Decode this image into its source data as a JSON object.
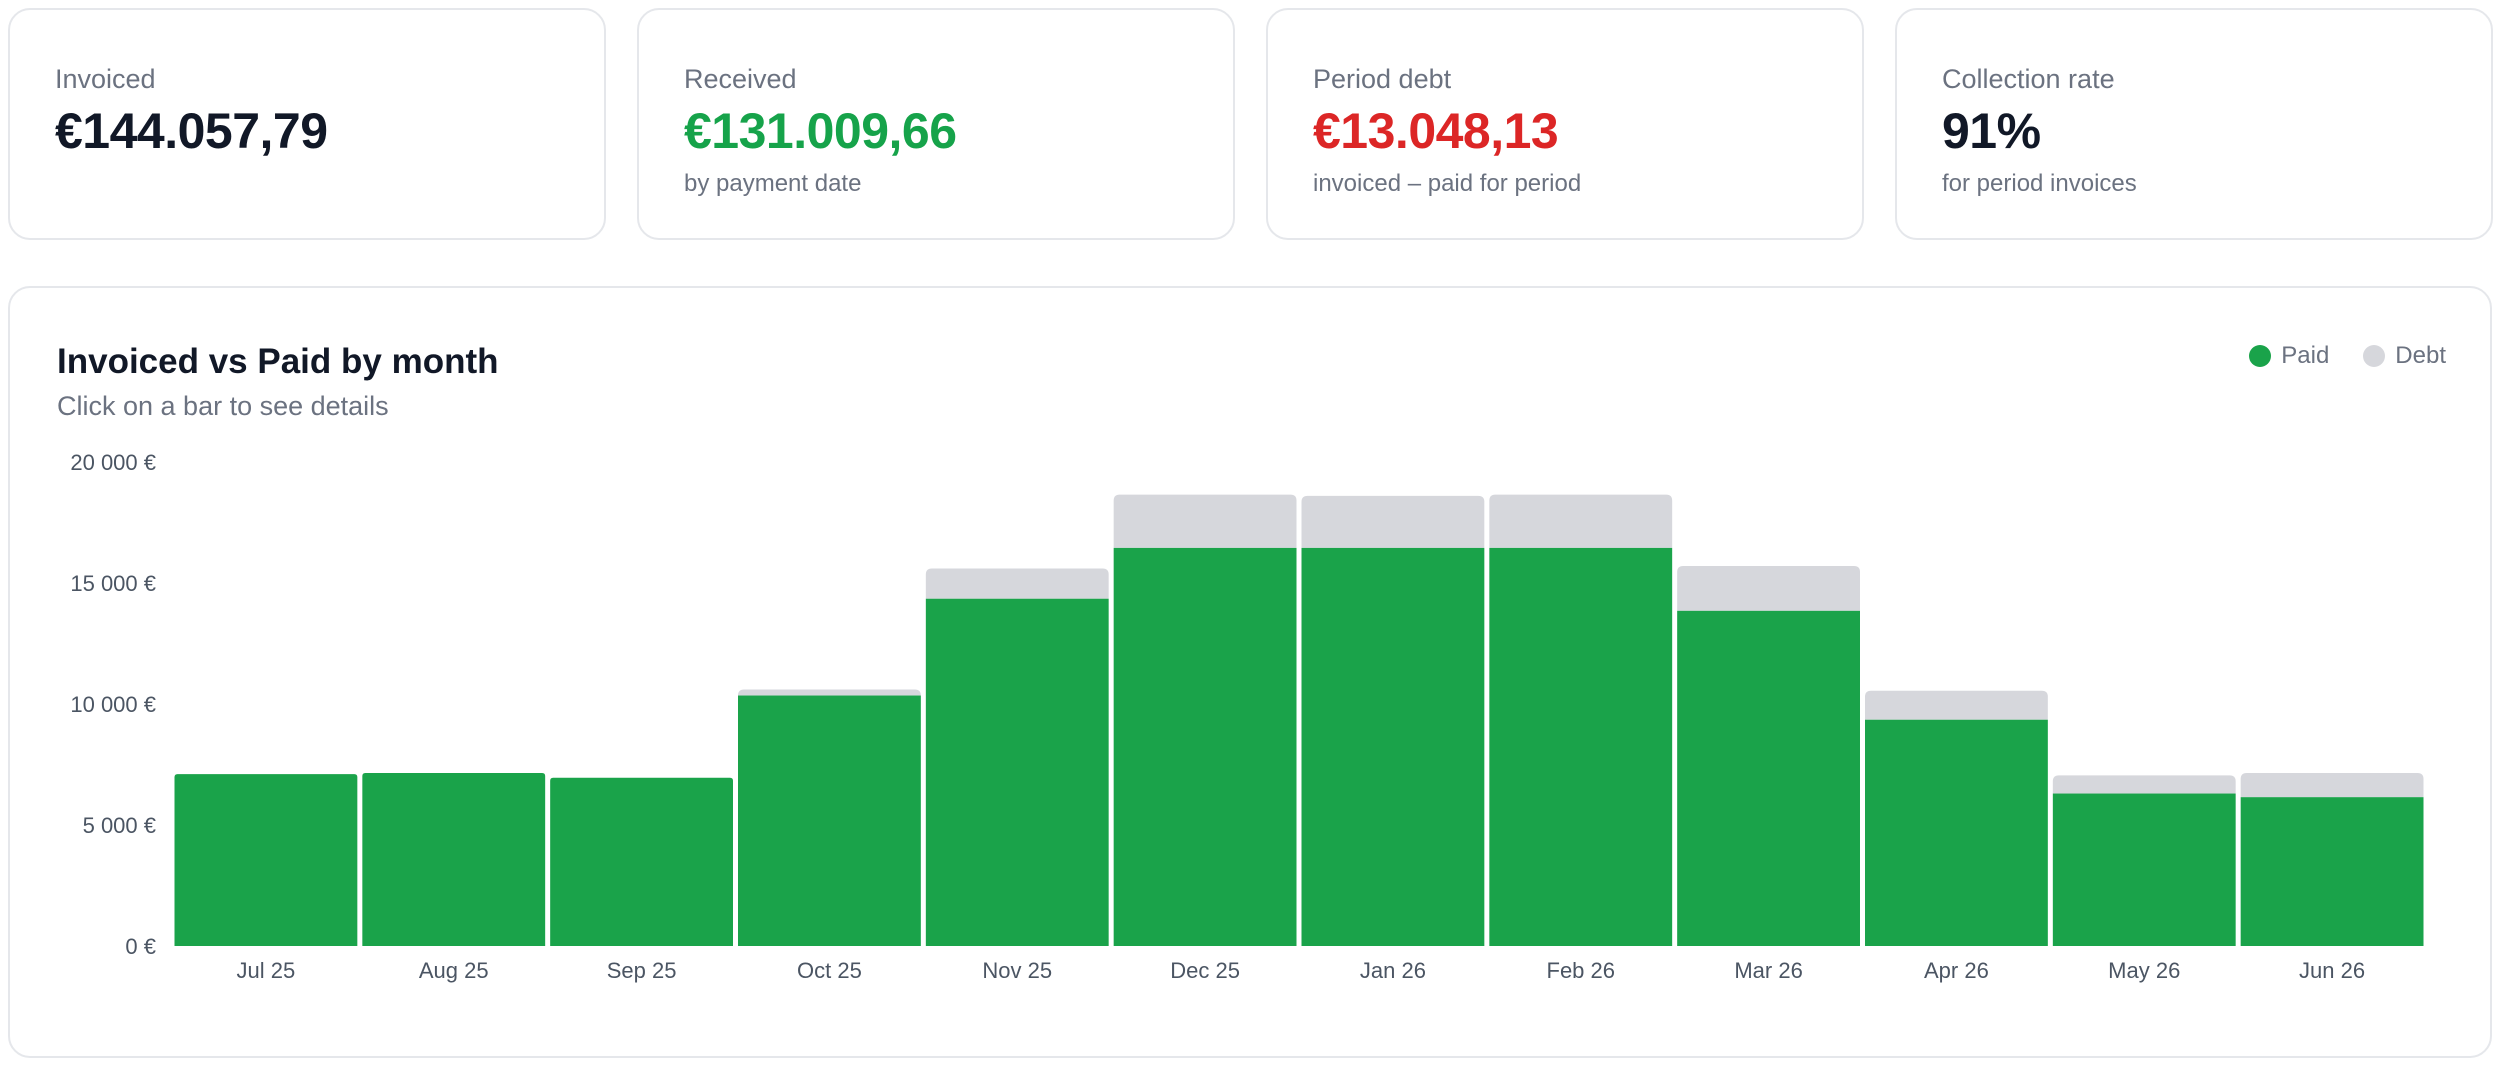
{
  "kpis": [
    {
      "label": "Invoiced",
      "value": "€144.057,79",
      "sub": "",
      "color": "#111827"
    },
    {
      "label": "Received",
      "value": "€131.009,66",
      "sub": "by payment date",
      "color": "#16a34a"
    },
    {
      "label": "Period debt",
      "value": "€13.048,13",
      "sub": "invoiced – paid for period",
      "color": "#dc2626"
    },
    {
      "label": "Collection rate",
      "value": "91%",
      "sub": "for period invoices",
      "color": "#111827"
    }
  ],
  "chart": {
    "title": "Invoiced vs Paid by month",
    "subtitle": "Click on a bar to see details",
    "legend": {
      "paid": "Paid",
      "debt": "Debt"
    }
  },
  "colors": {
    "paid": "#1aa34a",
    "debt": "#d6d7dc"
  },
  "chart_data": {
    "type": "bar",
    "stacked": true,
    "categories": [
      "Jul 25",
      "Aug 25",
      "Sep 25",
      "Oct 25",
      "Nov 25",
      "Dec 25",
      "Jan 26",
      "Feb 26",
      "Mar 26",
      "Apr 26",
      "May 26",
      "Jun 26"
    ],
    "series": [
      {
        "name": "Paid",
        "values": [
          7100,
          7150,
          6950,
          10350,
          14350,
          16450,
          16450,
          16450,
          13850,
          9350,
          6300,
          6150
        ]
      },
      {
        "name": "Debt",
        "values": [
          0,
          0,
          0,
          250,
          1250,
          2200,
          2150,
          2200,
          1850,
          1200,
          750,
          1000
        ]
      }
    ],
    "yticks": [
      "0 €",
      "5 000 €",
      "10 000 €",
      "15 000 €",
      "20 000 €"
    ],
    "yticks_values": [
      0,
      5000,
      10000,
      15000,
      20000
    ],
    "ylim": [
      0,
      20000
    ],
    "legend_position": "top-right"
  }
}
